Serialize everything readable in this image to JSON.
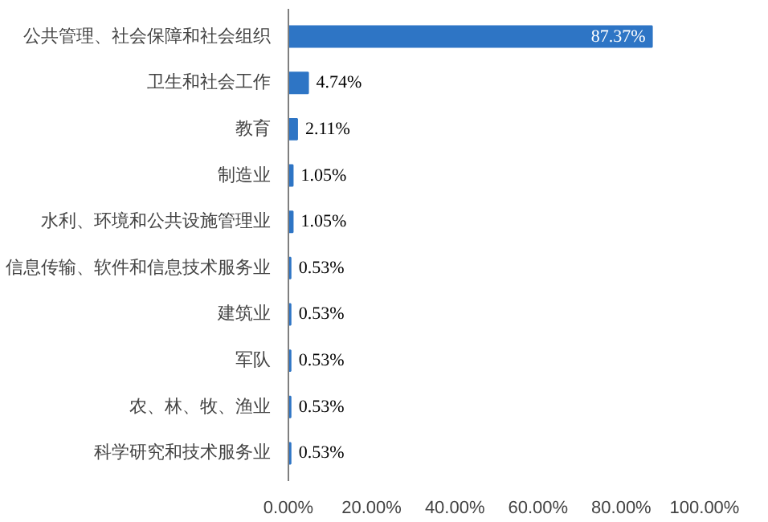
{
  "chart_data": {
    "type": "bar",
    "orientation": "horizontal",
    "categories": [
      "公共管理、社会保障和社会组织",
      "卫生和社会工作",
      "教育",
      "制造业",
      "水利、环境和公共设施管理业",
      "信息传输、软件和信息技术服务业",
      "建筑业",
      "军队",
      "农、林、牧、渔业",
      "科学研究和技术服务业"
    ],
    "values": [
      87.37,
      4.74,
      2.11,
      1.05,
      1.05,
      0.53,
      0.53,
      0.53,
      0.53,
      0.53
    ],
    "value_labels": [
      "87.37%",
      "4.74%",
      "2.11%",
      "1.05%",
      "1.05%",
      "0.53%",
      "0.53%",
      "0.53%",
      "0.53%",
      "0.53%"
    ],
    "color": "#2e75c5",
    "xlim": [
      0,
      100
    ],
    "xticks": [
      {
        "value": 0,
        "label": "0.00%"
      },
      {
        "value": 20,
        "label": "20.00%"
      },
      {
        "value": 40,
        "label": "40.00%"
      },
      {
        "value": 60,
        "label": "60.00%"
      },
      {
        "value": 80,
        "label": "80.00%"
      },
      {
        "value": 100,
        "label": "100.00%"
      }
    ],
    "grid": false
  }
}
